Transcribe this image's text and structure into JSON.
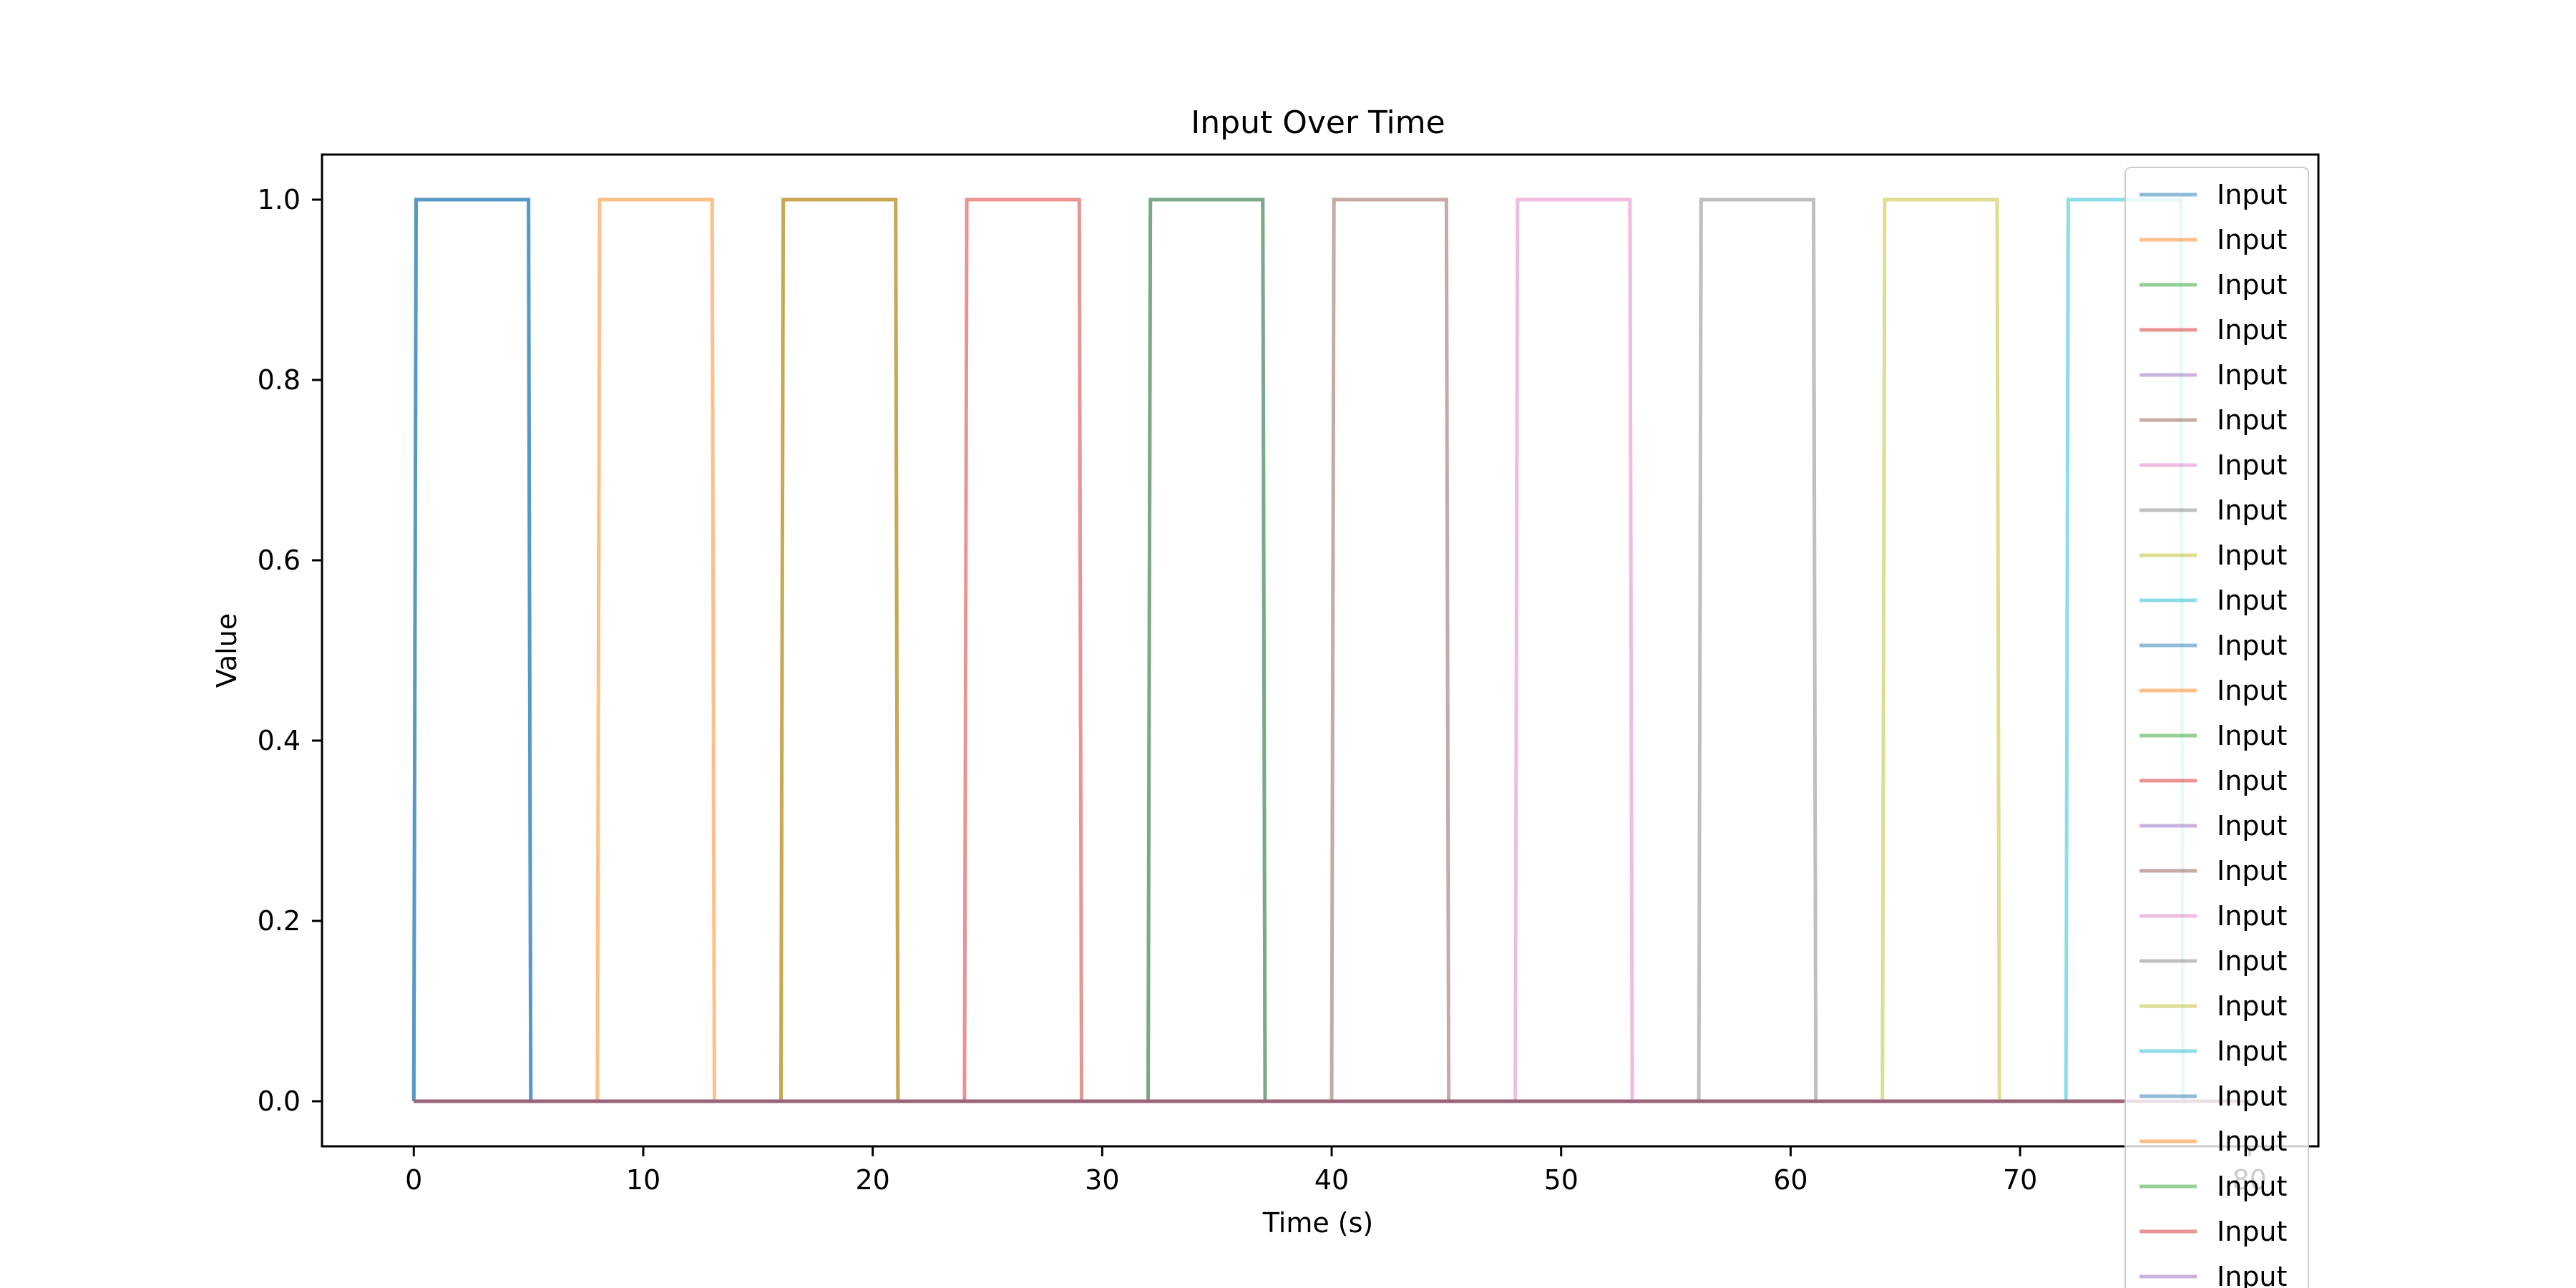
{
  "chart_data": {
    "type": "line",
    "title": "Input Over Time",
    "xlabel": "Time (s)",
    "ylabel": "Value",
    "xlim": [
      -4,
      83
    ],
    "ylim": [
      -0.05,
      1.05
    ],
    "xticks": [
      0,
      10,
      20,
      30,
      40,
      50,
      60,
      70,
      80
    ],
    "yticks": [
      0.0,
      0.2,
      0.4,
      0.6,
      0.8,
      1.0
    ],
    "xtick_labels": [
      "0",
      "10",
      "20",
      "30",
      "40",
      "50",
      "60",
      "70",
      "80"
    ],
    "ytick_labels": [
      "0.0",
      "0.2",
      "0.4",
      "0.6",
      "0.8",
      "1.0"
    ],
    "grid": false,
    "legend_position": "upper-right",
    "series_alpha": 0.5,
    "palette": [
      "#1f77b4",
      "#ff7f0e",
      "#2ca02c",
      "#d62728",
      "#9467bd",
      "#8c564b",
      "#e377c2",
      "#7f7f7f",
      "#bcbd22",
      "#17becf"
    ],
    "series": [
      {
        "name": "Input",
        "x": [
          0,
          0.1,
          5,
          5.1,
          80
        ],
        "y": [
          0,
          1,
          1,
          0,
          0
        ]
      },
      {
        "name": "Input",
        "x": [
          0,
          8,
          8.1,
          13,
          13.1,
          80
        ],
        "y": [
          0,
          0,
          1,
          1,
          0,
          0
        ]
      },
      {
        "name": "Input",
        "x": [
          0,
          16,
          16.1,
          21,
          21.1,
          80
        ],
        "y": [
          0,
          0,
          1,
          1,
          0,
          0
        ]
      },
      {
        "name": "Input",
        "x": [
          0,
          24,
          24.1,
          29,
          29.1,
          80
        ],
        "y": [
          0,
          0,
          1,
          1,
          0,
          0
        ]
      },
      {
        "name": "Input",
        "x": [
          0,
          32,
          32.1,
          37,
          37.1,
          80
        ],
        "y": [
          0,
          0,
          1,
          1,
          0,
          0
        ]
      },
      {
        "name": "Input",
        "x": [
          0,
          40,
          40.1,
          45,
          45.1,
          80
        ],
        "y": [
          0,
          0,
          1,
          1,
          0,
          0
        ]
      },
      {
        "name": "Input",
        "x": [
          0,
          48,
          48.1,
          53,
          53.1,
          80
        ],
        "y": [
          0,
          0,
          1,
          1,
          0,
          0
        ]
      },
      {
        "name": "Input",
        "x": [
          0,
          56,
          56.1,
          61,
          61.1,
          80
        ],
        "y": [
          0,
          0,
          1,
          1,
          0,
          0
        ]
      },
      {
        "name": "Input",
        "x": [
          0,
          64,
          64.1,
          69,
          69.1,
          80
        ],
        "y": [
          0,
          0,
          1,
          1,
          0,
          0
        ]
      },
      {
        "name": "Input",
        "x": [
          0,
          72,
          72.1,
          77,
          77.1,
          80
        ],
        "y": [
          0,
          0,
          1,
          1,
          0,
          0
        ]
      },
      {
        "name": "Input",
        "x": [
          0,
          0.1,
          5,
          5.1,
          80
        ],
        "y": [
          0,
          1,
          1,
          0,
          0
        ]
      },
      {
        "name": "Input",
        "x": [
          0,
          16,
          16.1,
          21,
          21.1,
          80
        ],
        "y": [
          0,
          0,
          1,
          1,
          0,
          0
        ]
      },
      {
        "name": "Input",
        "x": [
          0,
          32,
          32.1,
          37,
          37.1,
          80
        ],
        "y": [
          0,
          0,
          1,
          1,
          0,
          0
        ]
      },
      {
        "name": "Input",
        "x": [
          0,
          80
        ],
        "y": [
          0,
          0
        ]
      },
      {
        "name": "Input",
        "x": [
          0,
          80
        ],
        "y": [
          0,
          0
        ]
      },
      {
        "name": "Input",
        "x": [
          0,
          80
        ],
        "y": [
          0,
          0
        ]
      },
      {
        "name": "Input",
        "x": [
          0,
          80
        ],
        "y": [
          0,
          0
        ]
      },
      {
        "name": "Input",
        "x": [
          0,
          80
        ],
        "y": [
          0,
          0
        ]
      },
      {
        "name": "Input",
        "x": [
          0,
          80
        ],
        "y": [
          0,
          0
        ]
      },
      {
        "name": "Input",
        "x": [
          0,
          80
        ],
        "y": [
          0,
          0
        ]
      },
      {
        "name": "Input",
        "x": [
          0,
          80
        ],
        "y": [
          0,
          0
        ]
      },
      {
        "name": "Input",
        "x": [
          0,
          80
        ],
        "y": [
          0,
          0
        ]
      },
      {
        "name": "Input",
        "x": [
          0,
          80
        ],
        "y": [
          0,
          0
        ]
      },
      {
        "name": "Input",
        "x": [
          0,
          80
        ],
        "y": [
          0,
          0
        ]
      },
      {
        "name": "Input",
        "x": [
          0,
          80
        ],
        "y": [
          0,
          0
        ]
      }
    ]
  }
}
